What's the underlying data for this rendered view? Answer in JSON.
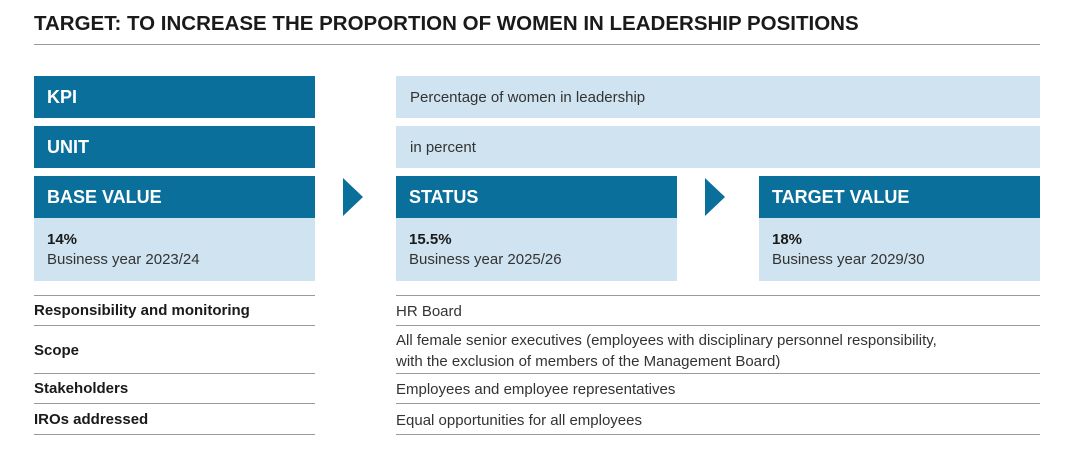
{
  "title": "TARGET: TO INCREASE THE PROPORTION OF WOMEN IN LEADERSHIP POSITIONS",
  "kpi": {
    "label": "KPI",
    "value": "Percentage of women in leadership"
  },
  "unit": {
    "label": "UNIT",
    "value": "in percent"
  },
  "base": {
    "label": "BASE VALUE",
    "value": "14%",
    "year": "Business year 2023/24"
  },
  "status": {
    "label": "STATUS",
    "value": "15.5%",
    "year": "Business year 2025/26"
  },
  "target": {
    "label": "TARGET VALUE",
    "value": "18%",
    "year": "Business year 2029/30"
  },
  "rows": [
    {
      "label": "Responsibility and monitoring",
      "value": "HR Board"
    },
    {
      "label": "Scope",
      "value_line1": "All female senior executives (employees with disciplinary personnel responsibility,",
      "value_line2": "with the exclusion of members of the Management Board)"
    },
    {
      "label": "Stakeholders",
      "value": "Employees and employee representatives"
    },
    {
      "label": "IROs addressed",
      "value": "Equal opportunities for all employees"
    }
  ],
  "colors": {
    "accent": "#0b6f9c",
    "light": "#cfe3f0",
    "rule": "#9a9a9a"
  }
}
